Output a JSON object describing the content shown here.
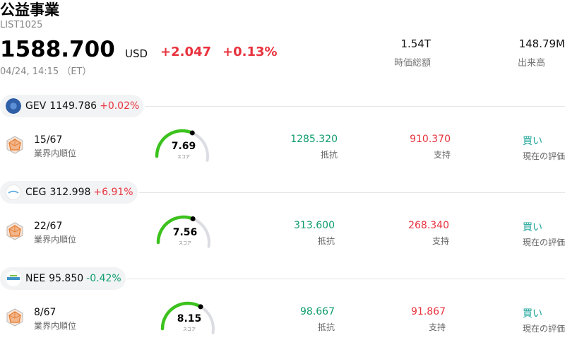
{
  "header": {
    "title": "公益事業",
    "code": "LIST1025",
    "price": "1588.700",
    "currency": "USD",
    "change": "+2.047",
    "change_pct": "+0.13%",
    "timestamp": "04/24, 14:15 （ET）",
    "market_cap_value": "1.54T",
    "market_cap_label": "時価総額",
    "volume_value": "148.79M",
    "volume_label": "出来高"
  },
  "colors": {
    "up": "#e8323e",
    "down": "#0f9d6e",
    "resistance": "#0f9d6e",
    "support": "#e8323e",
    "rating": "#1fa59b",
    "gauge_arc": "#3cc21d",
    "gauge_track": "#dcdde3"
  },
  "stocks": [
    {
      "ticker": "GEV",
      "price": "1149.786",
      "change_pct": "+0.02%",
      "direction": "up",
      "logo_icon": "ge-vernova-logo-icon",
      "rank": "15/67",
      "rank_label": "業界内順位",
      "score": "7.69",
      "score_label": "スコア",
      "resistance": "1285.320",
      "resistance_label": "抵抗",
      "support": "910.370",
      "support_label": "支持",
      "rating": "買い",
      "rating_label": "現在の評価"
    },
    {
      "ticker": "CEG",
      "price": "312.998",
      "change_pct": "+6.91%",
      "direction": "up",
      "logo_icon": "constellation-logo-icon",
      "rank": "22/67",
      "rank_label": "業界内順位",
      "score": "7.56",
      "score_label": "スコア",
      "resistance": "313.600",
      "resistance_label": "抵抗",
      "support": "268.340",
      "support_label": "支持",
      "rating": "買い",
      "rating_label": "現在の評価"
    },
    {
      "ticker": "NEE",
      "price": "95.850",
      "change_pct": "-0.42%",
      "direction": "down",
      "logo_icon": "nextera-logo-icon",
      "rank": "8/67",
      "rank_label": "業界内順位",
      "score": "8.15",
      "score_label": "スコア",
      "resistance": "98.667",
      "resistance_label": "抵抗",
      "support": "91.867",
      "support_label": "支持",
      "rating": "買い",
      "rating_label": "現在の評価"
    }
  ]
}
